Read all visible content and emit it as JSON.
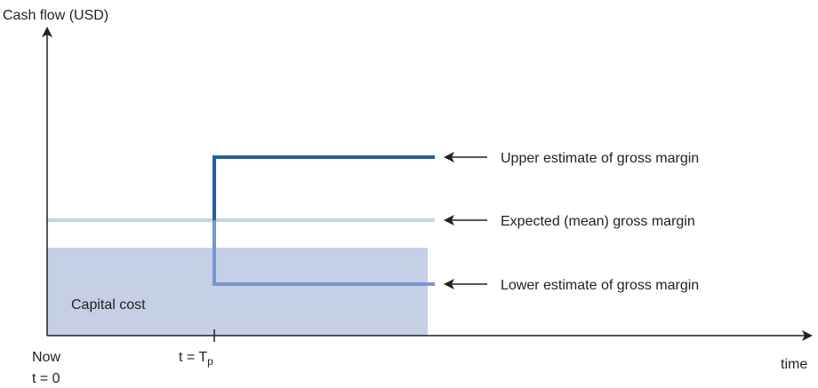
{
  "axes": {
    "y_label": "Cash flow (USD)",
    "x_label": "time"
  },
  "x_markers": {
    "now_line1": "Now",
    "now_line2": "t = 0",
    "tp_prefix": "t = T",
    "tp_subscript": "p"
  },
  "regions": {
    "capital_cost_label": "Capital cost"
  },
  "annotations": {
    "upper": "Upper estimate of gross margin",
    "expected": "Expected (mean) gross margin",
    "lower": "Lower estimate of gross margin"
  },
  "colors": {
    "axis": "#231f20",
    "upper_line": "#1f5fa3",
    "expected_line": "#c6d3e6",
    "lower_line": "#7b96cc",
    "capital_fill": "#c5cfe6"
  }
}
